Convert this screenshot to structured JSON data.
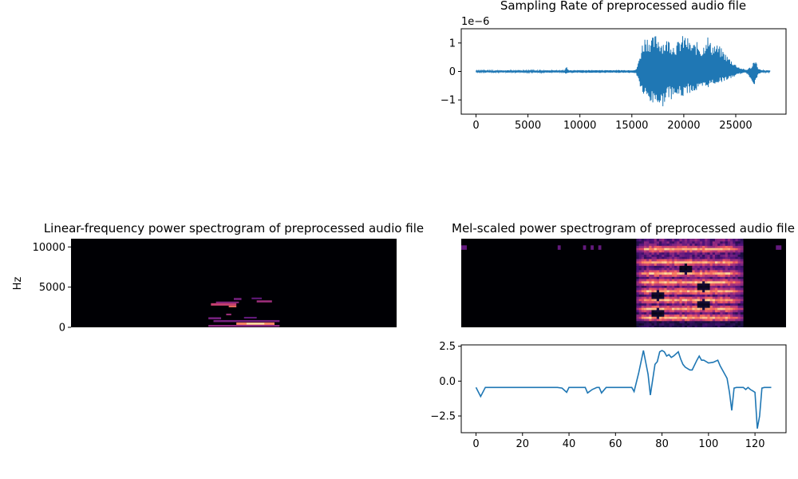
{
  "chart_data": [
    {
      "type": "line",
      "title": "Sampling Rate of preprocessed audio file",
      "xlabel": "",
      "ylabel": "",
      "offset_label": "1e−6",
      "xlim": [
        -1420,
        29840
      ],
      "ylim": [
        -1.5,
        1.5
      ],
      "x_ticks": [
        0,
        5000,
        10000,
        15000,
        20000,
        25000
      ],
      "y_ticks": [
        -1,
        0,
        1
      ],
      "y_tick_labels": [
        "−1",
        "0",
        "1"
      ],
      "series": [
        {
          "color": "#1f77b4",
          "envelope": {
            "x": [
              0,
              2000,
              8500,
              8700,
              8900,
              10000,
              12000,
              14500,
              15400,
              15600,
              15800,
              16000,
              16300,
              16600,
              17000,
              17400,
              17800,
              18200,
              18600,
              19000,
              19400,
              19800,
              20200,
              20600,
              21000,
              21400,
              21800,
              22200,
              22600,
              23000,
              23400,
              23800,
              24200,
              24600,
              25000,
              25500,
              26000,
              26600,
              26800,
              27000,
              27200,
              27500,
              28300
            ],
            "upper": [
              0.04,
              0.04,
              0.04,
              0.18,
              0.05,
              0.05,
              0.05,
              0.05,
              0.06,
              0.3,
              0.65,
              1.0,
              1.3,
              1.25,
              1.2,
              1.35,
              1.15,
              1.1,
              1.2,
              1.0,
              1.05,
              1.25,
              1.3,
              1.05,
              1.0,
              1.05,
              0.8,
              1.4,
              1.0,
              1.0,
              0.9,
              0.75,
              0.55,
              0.4,
              0.25,
              0.12,
              0.06,
              0.2,
              0.55,
              0.3,
              0.1,
              0.04,
              0.04
            ],
            "lower": [
              -0.04,
              -0.04,
              -0.04,
              -0.1,
              -0.05,
              -0.05,
              -0.05,
              -0.05,
              -0.06,
              -0.3,
              -0.55,
              -0.8,
              -1.0,
              -1.1,
              -1.2,
              -1.1,
              -1.4,
              -1.05,
              -0.95,
              -1.0,
              -0.9,
              -0.95,
              -0.8,
              -0.75,
              -0.75,
              -0.7,
              -0.65,
              -0.6,
              -0.5,
              -0.45,
              -0.4,
              -0.35,
              -0.3,
              -0.25,
              -0.15,
              -0.08,
              -0.05,
              -0.35,
              -0.5,
              -0.3,
              -0.1,
              -0.04,
              -0.04
            ]
          }
        }
      ]
    },
    {
      "type": "heatmap",
      "title": "Linear-frequency power spectrogram of preprocessed audio file",
      "xlabel": "",
      "ylabel": "Hz",
      "ylim": [
        0,
        11025
      ],
      "y_ticks": [
        0,
        5000,
        10000
      ],
      "time_frames": 128,
      "colormap": "magma",
      "bands": [
        {
          "t0": 55,
          "t1": 65,
          "f0": 2700,
          "f1": 3000,
          "intensity": 0.55
        },
        {
          "t0": 62,
          "t1": 65,
          "f0": 2500,
          "f1": 2700,
          "intensity": 0.7
        },
        {
          "t0": 57,
          "t1": 66,
          "f0": 3000,
          "f1": 3200,
          "intensity": 0.4
        },
        {
          "t0": 73,
          "t1": 79,
          "f0": 3100,
          "f1": 3350,
          "intensity": 0.45
        },
        {
          "t0": 64,
          "t1": 67,
          "f0": 3400,
          "f1": 3650,
          "intensity": 0.35
        },
        {
          "t0": 71,
          "t1": 75,
          "f0": 3500,
          "f1": 3700,
          "intensity": 0.3
        },
        {
          "t0": 61,
          "t1": 63,
          "f0": 1500,
          "f1": 1700,
          "intensity": 0.45
        },
        {
          "t0": 54,
          "t1": 59,
          "f0": 1000,
          "f1": 1250,
          "intensity": 0.35
        },
        {
          "t0": 68,
          "t1": 73,
          "f0": 1100,
          "f1": 1300,
          "intensity": 0.3
        },
        {
          "t0": 56,
          "t1": 82,
          "f0": 650,
          "f1": 900,
          "intensity": 0.35
        },
        {
          "t0": 65,
          "t1": 80,
          "f0": 300,
          "f1": 600,
          "intensity": 0.75
        },
        {
          "t0": 69,
          "t1": 76,
          "f0": 350,
          "f1": 550,
          "intensity": 0.95
        },
        {
          "t0": 54,
          "t1": 82,
          "f0": 60,
          "f1": 300,
          "intensity": 0.4
        }
      ]
    },
    {
      "type": "heatmap",
      "title": "Mel-scaled power spectrogram of preprocessed audio file",
      "xlabel": "",
      "ylabel": "",
      "time_frames": 128,
      "mel_bins": 40,
      "colormap": "magma",
      "active_frames": [
        69,
        110
      ],
      "bright_rows": [
        4,
        8,
        12,
        16,
        20,
        24,
        29,
        35
      ],
      "dark_holes": [
        {
          "t": 77,
          "row": 6
        },
        {
          "t": 77,
          "row": 14
        },
        {
          "t": 95,
          "row": 10
        },
        {
          "t": 95,
          "row": 18
        },
        {
          "t": 88,
          "row": 26
        }
      ],
      "top_specks": [
        0,
        1,
        38,
        48,
        51,
        54,
        124,
        125
      ]
    },
    {
      "type": "line",
      "title": "",
      "xlabel": "",
      "ylabel": "",
      "xlim": [
        -6.35,
        133.35
      ],
      "ylim": [
        -3.7,
        2.6
      ],
      "x_ticks": [
        0,
        20,
        40,
        60,
        80,
        100,
        120
      ],
      "y_ticks": [
        -2.5,
        0.0,
        2.5
      ],
      "y_tick_labels": [
        "−2.5",
        "0.0",
        "2.5"
      ],
      "series": [
        {
          "color": "#1f77b4",
          "x": [
            0,
            2,
            4,
            6,
            8,
            10,
            15,
            20,
            25,
            30,
            35,
            37,
            39,
            40,
            42,
            45,
            47,
            48,
            50,
            52,
            53,
            54,
            56,
            60,
            65,
            67,
            68,
            70,
            72,
            74,
            75,
            77,
            78,
            79,
            80,
            81,
            82,
            83,
            84,
            85,
            87,
            88,
            89,
            90,
            92,
            93,
            95,
            96,
            97,
            98,
            100,
            102,
            104,
            105,
            106,
            108,
            109,
            110,
            111,
            112,
            114,
            115,
            116,
            117,
            118,
            119,
            120,
            121,
            122,
            123,
            124,
            125,
            126,
            127
          ],
          "y": [
            -0.45,
            -1.1,
            -0.45,
            -0.45,
            -0.45,
            -0.45,
            -0.45,
            -0.45,
            -0.45,
            -0.45,
            -0.45,
            -0.5,
            -0.8,
            -0.45,
            -0.45,
            -0.45,
            -0.45,
            -0.85,
            -0.6,
            -0.45,
            -0.45,
            -0.85,
            -0.45,
            -0.45,
            -0.45,
            -0.45,
            -0.75,
            0.6,
            2.2,
            0.5,
            -1.0,
            1.2,
            1.4,
            2.1,
            2.2,
            2.1,
            1.8,
            1.9,
            1.7,
            1.8,
            2.1,
            1.6,
            1.2,
            1.0,
            0.8,
            0.8,
            1.5,
            1.8,
            1.5,
            1.5,
            1.3,
            1.35,
            1.5,
            1.1,
            0.8,
            0.2,
            -0.8,
            -2.1,
            -0.5,
            -0.45,
            -0.45,
            -0.45,
            -0.6,
            -0.45,
            -0.6,
            -0.7,
            -0.8,
            -3.4,
            -2.5,
            -0.5,
            -0.45,
            -0.45,
            -0.45,
            -0.45
          ]
        }
      ]
    }
  ]
}
